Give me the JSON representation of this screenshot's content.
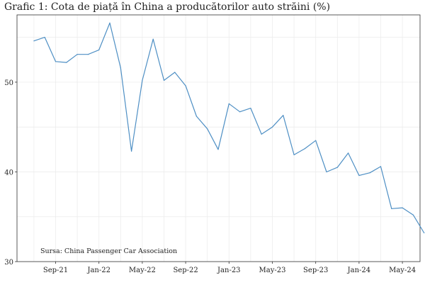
{
  "chart_data": {
    "type": "line",
    "title": "Grafic 1: Cota de piață în China a producătorilor auto străini (%)",
    "source": "Sursa: China Passenger Car Association",
    "xlabel": "",
    "ylabel": "",
    "x_ticks": [
      "Sep-21",
      "Jan-22",
      "May-22",
      "Sep-22",
      "Jan-23",
      "May-23",
      "Sep-23",
      "Jan-24",
      "May-24"
    ],
    "y_ticks": [
      30,
      40,
      50
    ],
    "ylim": [
      30,
      57.5
    ],
    "grid": true,
    "line_color": "#4e8fc4",
    "series": [
      {
        "x": [
          "2021-07",
          "2021-08",
          "2021-09",
          "2021-10",
          "2021-11",
          "2021-12",
          "2022-01",
          "2022-02",
          "2022-03",
          "2022-04",
          "2022-05",
          "2022-06",
          "2022-07",
          "2022-08",
          "2022-09",
          "2022-10",
          "2022-11",
          "2022-12",
          "2023-01",
          "2023-02",
          "2023-03",
          "2023-04",
          "2023-05",
          "2023-06",
          "2023-07",
          "2023-08",
          "2023-09",
          "2023-10",
          "2023-11",
          "2023-12",
          "2024-01",
          "2024-02",
          "2024-03",
          "2024-04",
          "2024-05",
          "2024-06",
          "2024-07"
        ],
        "values": [
          54.6,
          55.0,
          52.3,
          52.2,
          53.1,
          53.1,
          53.6,
          56.6,
          51.6,
          42.3,
          50.2,
          54.8,
          50.2,
          51.1,
          49.6,
          46.2,
          44.8,
          42.5,
          47.6,
          46.7,
          47.1,
          44.2,
          45.0,
          46.3,
          41.9,
          42.6,
          43.5,
          40.0,
          40.5,
          42.1,
          39.6,
          39.9,
          40.6,
          35.9,
          36.0,
          35.2,
          33.2
        ]
      }
    ]
  }
}
